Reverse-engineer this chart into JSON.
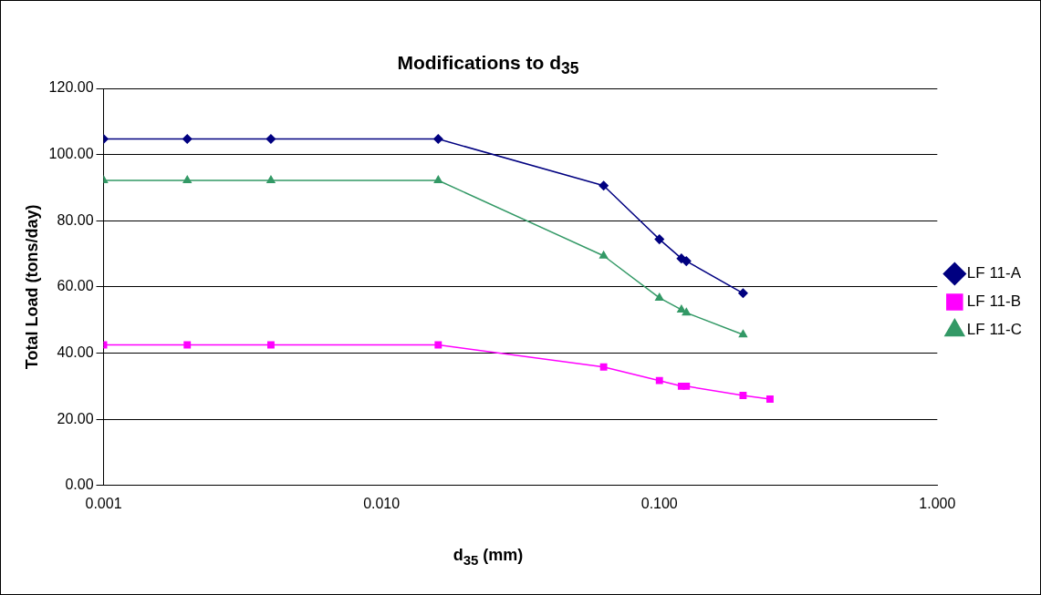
{
  "chart_data": {
    "type": "line",
    "title": "Modifications to d$_{35}$",
    "xlabel": "d$_{35}$ (mm)",
    "ylabel": "Total Load (tons/day)",
    "log": "x",
    "xlim": [
      0.001,
      1
    ],
    "xticks": [
      {
        "value": 0.001,
        "label": "0.001"
      },
      {
        "value": 0.01,
        "label": "0.010"
      },
      {
        "value": 0.1,
        "label": "0.100"
      },
      {
        "value": 1,
        "label": "1.000"
      }
    ],
    "ylim": [
      0,
      120
    ],
    "yticks": [
      {
        "value": 0,
        "label": "0.00"
      },
      {
        "value": 20,
        "label": "20.00"
      },
      {
        "value": 40,
        "label": "40.00"
      },
      {
        "value": 60,
        "label": "60.00"
      },
      {
        "value": 80,
        "label": "80.00"
      },
      {
        "value": 100,
        "label": "100.00"
      },
      {
        "value": 120,
        "label": "120.00"
      }
    ],
    "grid": "y",
    "legend": "right",
    "line_style": "solid",
    "series": [
      {
        "name": "LF 11-A",
        "color": "#000080",
        "marker": "diamond",
        "x": [
          0.001,
          0.002,
          0.004,
          0.016,
          0.063,
          0.1,
          0.12,
          0.125,
          0.2
        ],
        "values": [
          104.7,
          104.7,
          104.7,
          104.7,
          90.6,
          74.4,
          68.6,
          67.8,
          58.1
        ]
      },
      {
        "name": "LF 11-B",
        "color": "#ff00ff",
        "marker": "square",
        "x": [
          0.001,
          0.002,
          0.004,
          0.016,
          0.063,
          0.1,
          0.12,
          0.125,
          0.2,
          0.25
        ],
        "values": [
          42.5,
          42.5,
          42.5,
          42.5,
          35.8,
          31.7,
          30.0,
          30.0,
          27.2,
          26.1
        ]
      },
      {
        "name": "LF 11-C",
        "color": "#339966",
        "marker": "triangle",
        "x": [
          0.001,
          0.002,
          0.004,
          0.016,
          0.063,
          0.1,
          0.12,
          0.125,
          0.2
        ],
        "values": [
          92.2,
          92.2,
          92.2,
          92.2,
          69.4,
          56.7,
          53.1,
          52.2,
          45.6
        ]
      }
    ]
  }
}
